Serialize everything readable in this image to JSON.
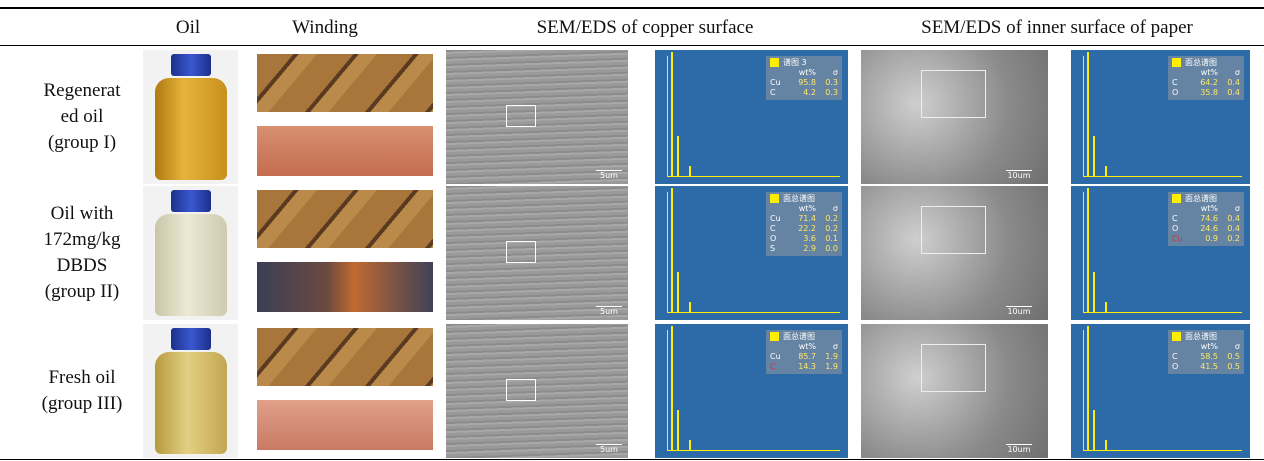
{
  "header": {
    "columns": [
      "Oil",
      "Winding",
      "SEM/EDS of copper surface",
      "SEM/EDS of inner surface of paper"
    ]
  },
  "rows": [
    {
      "label": [
        "Regenerat",
        "ed oil",
        "(group I)"
      ],
      "copper_sem": {
        "scale": "5um"
      },
      "copper_eds": {
        "title": "谱图 3",
        "columns": [
          "wt%",
          "σ"
        ],
        "rows": [
          [
            "Cu",
            "95.8",
            "0.3"
          ],
          [
            "C",
            "4.2",
            "0.3"
          ]
        ]
      },
      "paper_sem": {
        "scale": "10um"
      },
      "paper_eds": {
        "title": "面总谱图",
        "columns": [
          "wt%",
          "σ"
        ],
        "rows": [
          [
            "C",
            "64.2",
            "0.4"
          ],
          [
            "O",
            "35.8",
            "0.4"
          ]
        ]
      }
    },
    {
      "label": [
        "Oil with",
        "172mg/kg",
        "DBDS",
        "(group II)"
      ],
      "copper_sem": {
        "scale": "5um"
      },
      "copper_eds": {
        "title": "面总谱图",
        "columns": [
          "wt%",
          "σ"
        ],
        "rows": [
          [
            "Cu",
            "71.4",
            "0.2"
          ],
          [
            "C",
            "22.2",
            "0.2"
          ],
          [
            "O",
            "3.6",
            "0.1"
          ],
          [
            "S",
            "2.9",
            "0.0"
          ]
        ]
      },
      "paper_sem": {
        "scale": "10um"
      },
      "paper_eds": {
        "title": "面总谱图",
        "columns": [
          "wt%",
          "σ"
        ],
        "rows": [
          [
            "C",
            "74.6",
            "0.4"
          ],
          [
            "O",
            "24.6",
            "0.4"
          ],
          [
            "Cu",
            "0.9",
            "0.2"
          ]
        ]
      }
    },
    {
      "label": [
        "Fresh oil",
        "(group III)"
      ],
      "copper_sem": {
        "scale": "5um"
      },
      "copper_eds": {
        "title": "面总谱图",
        "columns": [
          "wt%",
          "σ"
        ],
        "rows": [
          [
            "Cu",
            "85.7",
            "1.9"
          ],
          [
            "C",
            "14.3",
            "1.9"
          ]
        ]
      },
      "paper_sem": {
        "scale": "10um"
      },
      "paper_eds": {
        "title": "面总谱图",
        "columns": [
          "wt%",
          "σ"
        ],
        "rows": [
          [
            "C",
            "58.5",
            "0.5"
          ],
          [
            "O",
            "41.5",
            "0.5"
          ]
        ]
      }
    }
  ]
}
